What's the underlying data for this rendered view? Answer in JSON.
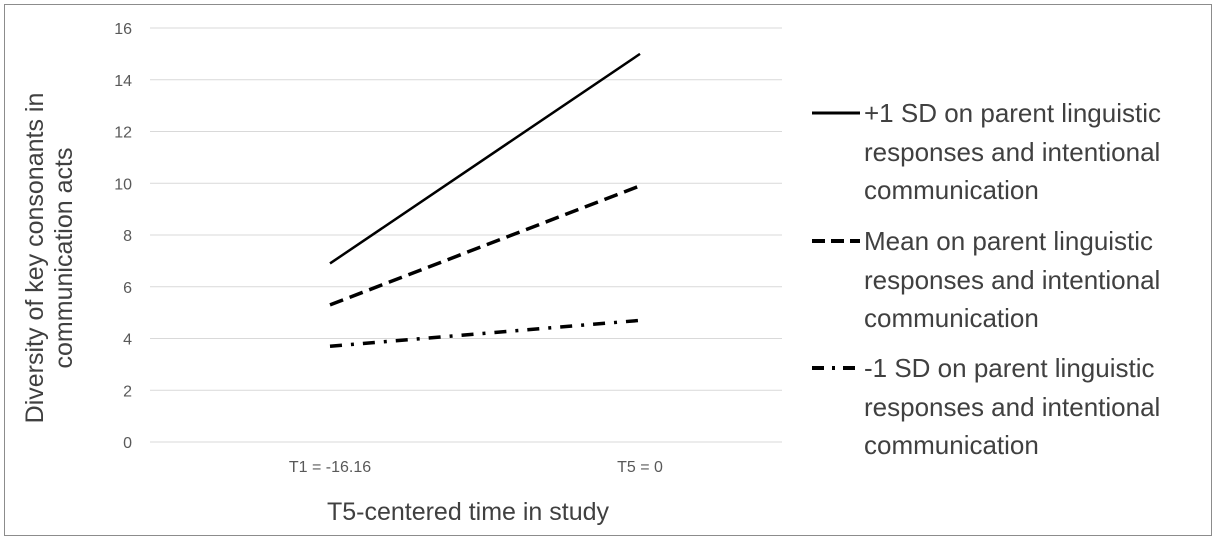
{
  "chart_data": {
    "type": "line",
    "title": "",
    "xlabel": "T5-centered time in study",
    "ylabel": "Diversity of key consonants in communication acts",
    "ylabel_lines": [
      "Diversity of key consonants in",
      "communication acts"
    ],
    "categories": [
      "T1 = -16.16",
      "T5 = 0"
    ],
    "ylim": [
      0,
      16
    ],
    "yticks": [
      0,
      2,
      4,
      6,
      8,
      10,
      12,
      14,
      16
    ],
    "grid": true,
    "legend_position": "right",
    "series": [
      {
        "name": "+1 SD  on parent linguistic responses and intentional communication",
        "name_lines": [
          "+1 SD  on parent linguistic",
          "responses and intentional",
          "communication"
        ],
        "style": "solid",
        "values": [
          6.9,
          15.0
        ]
      },
      {
        "name": "Mean on parent linguistic responses and intentional communication",
        "name_lines": [
          "Mean on parent linguistic",
          "responses and intentional",
          "communication"
        ],
        "style": "dashed",
        "values": [
          5.3,
          9.9
        ]
      },
      {
        "name": "-1 SD  on parent linguistic responses and intentional communication",
        "name_lines": [
          "-1 SD  on parent linguistic",
          "responses and intentional",
          "communication"
        ],
        "style": "dash-dot",
        "values": [
          3.7,
          4.7
        ]
      }
    ],
    "colors": {
      "line": "#000000",
      "grid": "#d9d9d9",
      "tick_text": "#595959",
      "title_text": "#404040"
    }
  }
}
